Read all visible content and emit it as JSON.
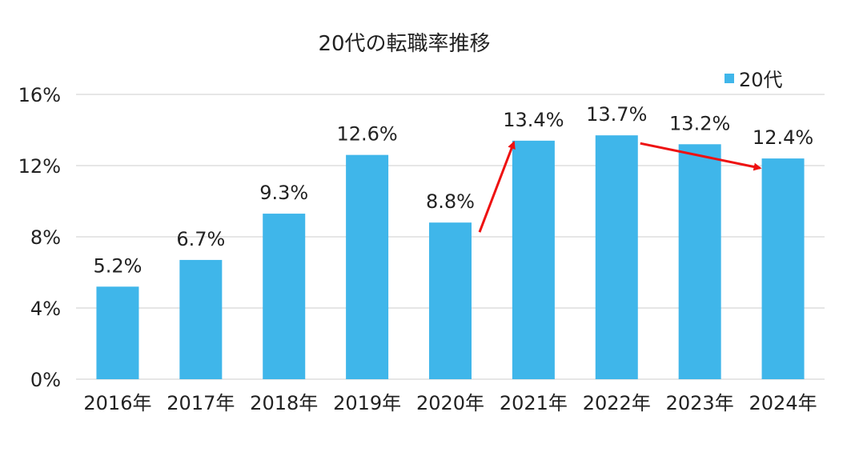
{
  "chart_data": {
    "type": "bar",
    "title": "20代の転職率推移",
    "categories": [
      "2016年",
      "2017年",
      "2018年",
      "2019年",
      "2020年",
      "2021年",
      "2022年",
      "2023年",
      "2024年"
    ],
    "series": [
      {
        "name": "20代",
        "values": [
          5.2,
          6.7,
          9.3,
          12.6,
          8.8,
          13.4,
          13.7,
          13.2,
          12.4
        ]
      }
    ],
    "data_labels": [
      "5.2%",
      "6.7%",
      "9.3%",
      "12.6%",
      "8.8%",
      "13.4%",
      "13.7%",
      "13.2%",
      "12.4%"
    ],
    "yticks": [
      "0%",
      "4%",
      "8%",
      "12%",
      "16%"
    ],
    "ylim": [
      0,
      16
    ],
    "grid": true,
    "legend_position": "top-right",
    "bar_color": "#3fb6ea",
    "arrow_color": "#ee1111",
    "annotations": [
      {
        "type": "arrow",
        "from": "2020年",
        "to": "2021年"
      },
      {
        "type": "arrow",
        "from": "2022年",
        "to": "2024年"
      }
    ]
  }
}
